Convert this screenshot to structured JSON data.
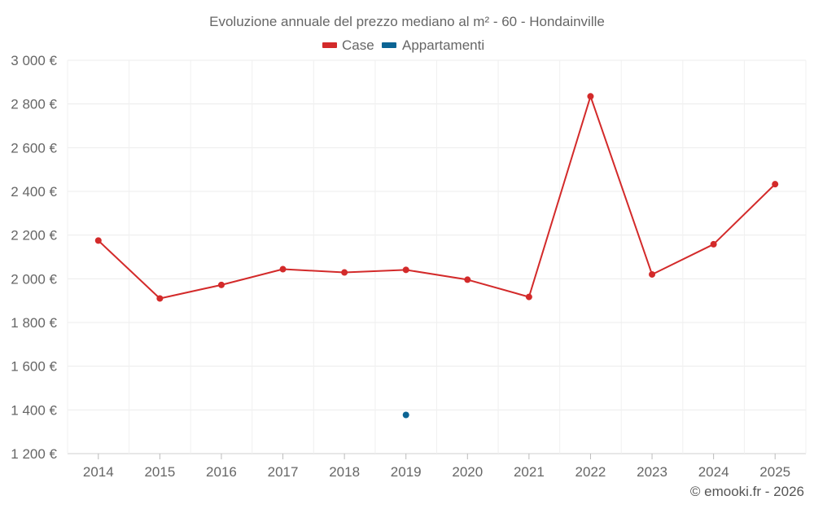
{
  "chart_data": {
    "type": "line",
    "title": "Evoluzione annuale del prezzo mediano al m² - 60 - Hondainville",
    "categories": [
      "2014",
      "2015",
      "2016",
      "2017",
      "2018",
      "2019",
      "2020",
      "2021",
      "2022",
      "2023",
      "2024",
      "2025"
    ],
    "ylim": [
      1200,
      3000
    ],
    "yticks": [
      1200,
      1400,
      1600,
      1800,
      2000,
      2200,
      2400,
      2600,
      2800,
      3000
    ],
    "ytick_labels": [
      "1 200 €",
      "1 400 €",
      "1 600 €",
      "1 800 €",
      "2 000 €",
      "2 200 €",
      "2 400 €",
      "2 600 €",
      "2 800 €",
      "3 000 €"
    ],
    "grid": true,
    "legend_position": "top-center",
    "series": [
      {
        "name": "Case",
        "color": "#d32a2a",
        "values": [
          2175,
          1910,
          1972,
          2044,
          2029,
          2041,
          1996,
          1917,
          2835,
          2020,
          2158,
          2433
        ]
      },
      {
        "name": "Appartamenti",
        "color": "#0b6494",
        "values": [
          null,
          null,
          null,
          null,
          null,
          1377,
          null,
          null,
          null,
          null,
          null,
          null
        ]
      }
    ]
  },
  "credit": "© emooki.fr - 2026"
}
